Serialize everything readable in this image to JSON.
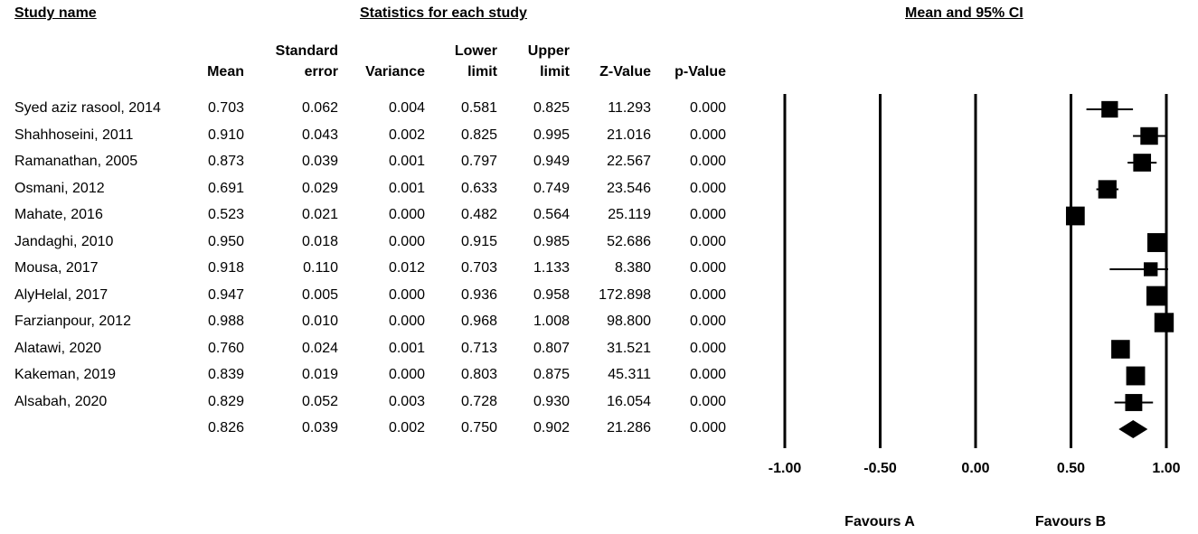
{
  "headers": {
    "study_name": "Study name",
    "statistics": "Statistics for each study",
    "ci": "Mean and 95% CI"
  },
  "columns": [
    {
      "line1": "",
      "line2": "Mean"
    },
    {
      "line1": "Standard",
      "line2": "error"
    },
    {
      "line1": "",
      "line2": "Variance"
    },
    {
      "line1": "Lower",
      "line2": "limit"
    },
    {
      "line1": "Upper",
      "line2": "limit"
    },
    {
      "line1": "",
      "line2": "Z-Value"
    },
    {
      "line1": "",
      "line2": "p-Value"
    }
  ],
  "rows": [
    {
      "name": "Syed aziz rasool, 2014",
      "mean": "0.703",
      "se": "0.062",
      "var": "0.004",
      "lower": "0.581",
      "upper": "0.825",
      "z": "11.293",
      "p": "0.000"
    },
    {
      "name": "Shahhoseini, 2011",
      "mean": "0.910",
      "se": "0.043",
      "var": "0.002",
      "lower": "0.825",
      "upper": "0.995",
      "z": "21.016",
      "p": "0.000"
    },
    {
      "name": "Ramanathan, 2005",
      "mean": "0.873",
      "se": "0.039",
      "var": "0.001",
      "lower": "0.797",
      "upper": "0.949",
      "z": "22.567",
      "p": "0.000"
    },
    {
      "name": "Osmani, 2012",
      "mean": "0.691",
      "se": "0.029",
      "var": "0.001",
      "lower": "0.633",
      "upper": "0.749",
      "z": "23.546",
      "p": "0.000"
    },
    {
      "name": "Mahate, 2016",
      "mean": "0.523",
      "se": "0.021",
      "var": "0.000",
      "lower": "0.482",
      "upper": "0.564",
      "z": "25.119",
      "p": "0.000"
    },
    {
      "name": "Jandaghi, 2010",
      "mean": "0.950",
      "se": "0.018",
      "var": "0.000",
      "lower": "0.915",
      "upper": "0.985",
      "z": "52.686",
      "p": "0.000"
    },
    {
      "name": "Mousa, 2017",
      "mean": "0.918",
      "se": "0.110",
      "var": "0.012",
      "lower": "0.703",
      "upper": "1.133",
      "z": "8.380",
      "p": "0.000"
    },
    {
      "name": "AlyHelal, 2017",
      "mean": "0.947",
      "se": "0.005",
      "var": "0.000",
      "lower": "0.936",
      "upper": "0.958",
      "z": "172.898",
      "p": "0.000"
    },
    {
      "name": "Farzianpour, 2012",
      "mean": "0.988",
      "se": "0.010",
      "var": "0.000",
      "lower": "0.968",
      "upper": "1.008",
      "z": "98.800",
      "p": "0.000"
    },
    {
      "name": "Alatawi, 2020",
      "mean": "0.760",
      "se": "0.024",
      "var": "0.001",
      "lower": "0.713",
      "upper": "0.807",
      "z": "31.521",
      "p": "0.000"
    },
    {
      "name": "Kakeman, 2019",
      "mean": "0.839",
      "se": "0.019",
      "var": "0.000",
      "lower": "0.803",
      "upper": "0.875",
      "z": "45.311",
      "p": "0.000"
    },
    {
      "name": "Alsabah, 2020",
      "mean": "0.829",
      "se": "0.052",
      "var": "0.003",
      "lower": "0.728",
      "upper": "0.930",
      "z": "16.054",
      "p": "0.000"
    }
  ],
  "summary": {
    "name": "",
    "mean": "0.826",
    "se": "0.039",
    "var": "0.002",
    "lower": "0.750",
    "upper": "0.902",
    "z": "21.286",
    "p": "0.000"
  },
  "chart_data": {
    "type": "scatter",
    "title": "Mean and 95% CI",
    "x_ticks": [
      "-1.00",
      "-0.50",
      "0.00",
      "0.50",
      "1.00"
    ],
    "xlim": [
      -1.0,
      1.0
    ],
    "points": [
      {
        "study": "Syed aziz rasool, 2014",
        "mean": 0.703,
        "lower": 0.581,
        "upper": 0.825
      },
      {
        "study": "Shahhoseini, 2011",
        "mean": 0.91,
        "lower": 0.825,
        "upper": 0.995
      },
      {
        "study": "Ramanathan, 2005",
        "mean": 0.873,
        "lower": 0.797,
        "upper": 0.949
      },
      {
        "study": "Osmani, 2012",
        "mean": 0.691,
        "lower": 0.633,
        "upper": 0.749
      },
      {
        "study": "Mahate, 2016",
        "mean": 0.523,
        "lower": 0.482,
        "upper": 0.564
      },
      {
        "study": "Jandaghi, 2010",
        "mean": 0.95,
        "lower": 0.915,
        "upper": 0.985
      },
      {
        "study": "Mousa, 2017",
        "mean": 0.918,
        "lower": 0.703,
        "upper": 1.133
      },
      {
        "study": "AlyHelal, 2017",
        "mean": 0.947,
        "lower": 0.936,
        "upper": 0.958
      },
      {
        "study": "Farzianpour, 2012",
        "mean": 0.988,
        "lower": 0.968,
        "upper": 1.008
      },
      {
        "study": "Alatawi, 2020",
        "mean": 0.76,
        "lower": 0.713,
        "upper": 0.807
      },
      {
        "study": "Kakeman, 2019",
        "mean": 0.839,
        "lower": 0.803,
        "upper": 0.875
      },
      {
        "study": "Alsabah, 2020",
        "mean": 0.829,
        "lower": 0.728,
        "upper": 0.93
      }
    ],
    "summary": {
      "mean": 0.826,
      "lower": 0.75,
      "upper": 0.902
    },
    "favours_a": "Favours A",
    "favours_b": "Favours B"
  }
}
